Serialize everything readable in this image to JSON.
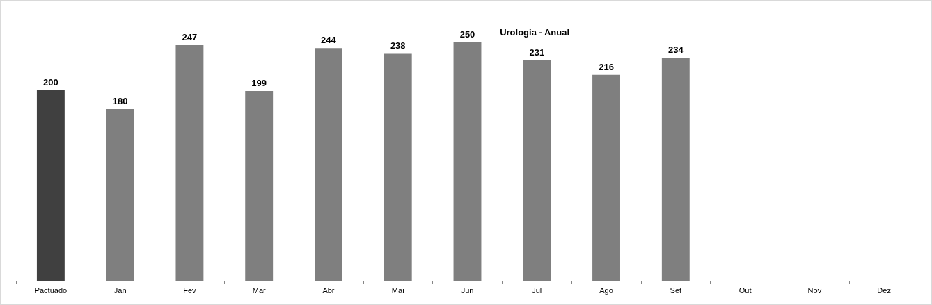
{
  "chart_data": {
    "type": "bar",
    "title": "Urologia - Anual",
    "categories": [
      "Pactuado",
      "Jan",
      "Fev",
      "Mar",
      "Abr",
      "Mai",
      "Jun",
      "Jul",
      "Ago",
      "Set",
      "Out",
      "Nov",
      "Dez"
    ],
    "values": [
      200,
      180,
      247,
      199,
      244,
      238,
      250,
      231,
      216,
      234,
      null,
      null,
      null
    ],
    "colors": [
      "#404040",
      "#7f7f7f",
      "#7f7f7f",
      "#7f7f7f",
      "#7f7f7f",
      "#7f7f7f",
      "#7f7f7f",
      "#7f7f7f",
      "#7f7f7f",
      "#7f7f7f",
      "#7f7f7f",
      "#7f7f7f",
      "#7f7f7f"
    ],
    "data_labels": true
  }
}
